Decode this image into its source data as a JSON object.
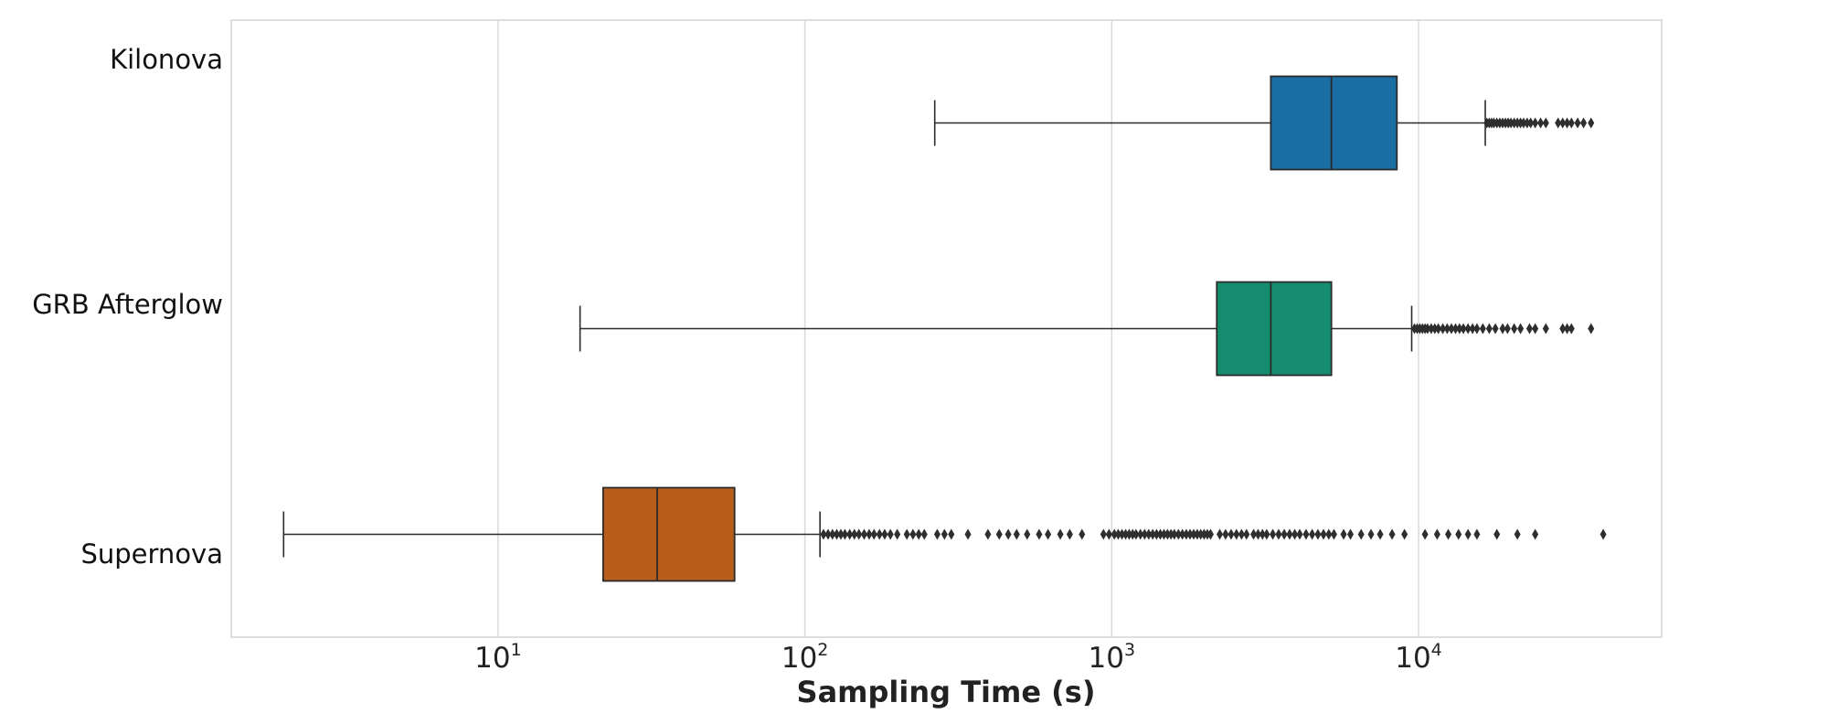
{
  "chart_data": {
    "type": "box",
    "orientation": "horizontal",
    "xlabel": "Sampling Time (s)",
    "ylabel": "",
    "xscale": "log",
    "xlim": [
      1.35,
      62000
    ],
    "grid": "vertical",
    "x_ticks": [
      {
        "base": "10",
        "exp": "1",
        "value": 10
      },
      {
        "base": "10",
        "exp": "2",
        "value": 100
      },
      {
        "base": "10",
        "exp": "3",
        "value": 1000
      },
      {
        "base": "10",
        "exp": "4",
        "value": 10000
      }
    ],
    "series": [
      {
        "category": "Kilonova",
        "color": "#1a6ea3",
        "whisker_low": 265,
        "q1": 3300,
        "median": 5200,
        "q3": 8500,
        "whisker_high": 16500,
        "outliers": [
          16700,
          17000,
          17300,
          17600,
          18000,
          18400,
          18800,
          19200,
          19600,
          20000,
          20500,
          21000,
          21500,
          22000,
          22600,
          23200,
          24000,
          25000,
          26000,
          28500,
          29500,
          30500,
          31500,
          33000,
          34500,
          36500
        ]
      },
      {
        "category": "GRB Afterglow",
        "color": "#168c6e",
        "whisker_low": 18.5,
        "q1": 2200,
        "median": 3300,
        "q3": 5200,
        "whisker_high": 9500,
        "outliers": [
          9700,
          9900,
          10100,
          10300,
          10500,
          10700,
          11000,
          11300,
          11600,
          12000,
          12400,
          12800,
          13200,
          13600,
          14000,
          14500,
          15000,
          15500,
          16200,
          17000,
          17800,
          18800,
          19500,
          20500,
          21500,
          23000,
          24000,
          26000,
          29500,
          30500,
          31500,
          36500
        ]
      },
      {
        "category": "Supernova",
        "color": "#b85e1d",
        "whisker_low": 2.0,
        "q1": 22,
        "median": 33,
        "q3": 59,
        "whisker_high": 112,
        "outliers": [
          115,
          119,
          123,
          127,
          131,
          135,
          140,
          145,
          150,
          156,
          162,
          168,
          175,
          182,
          190,
          200,
          215,
          225,
          235,
          245,
          270,
          285,
          300,
          340,
          395,
          430,
          460,
          490,
          530,
          580,
          620,
          680,
          730,
          800,
          940,
          980,
          1020,
          1050,
          1080,
          1110,
          1140,
          1170,
          1200,
          1240,
          1280,
          1320,
          1360,
          1400,
          1440,
          1480,
          1520,
          1560,
          1600,
          1650,
          1700,
          1750,
          1800,
          1850,
          1900,
          1950,
          2000,
          2050,
          2100,
          2250,
          2350,
          2450,
          2550,
          2650,
          2750,
          2900,
          3000,
          3100,
          3200,
          3350,
          3500,
          3650,
          3800,
          3950,
          4100,
          4300,
          4500,
          4700,
          4900,
          5100,
          5300,
          5700,
          6000,
          6500,
          7000,
          7500,
          8200,
          9000,
          10500,
          11500,
          12500,
          13500,
          14500,
          15500,
          18000,
          21000,
          24000,
          40000
        ]
      }
    ]
  }
}
